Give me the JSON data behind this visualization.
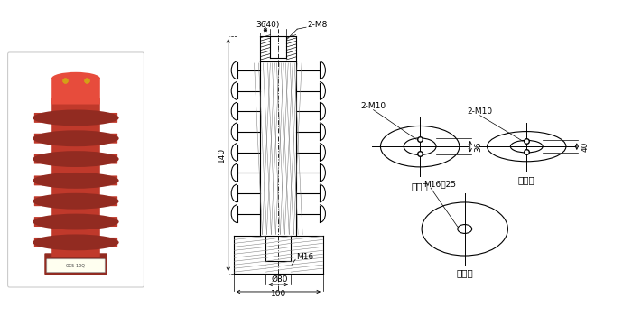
{
  "bg_color": "#ffffff",
  "line_color": "#000000",
  "photo_color": "#c0392b",
  "photo_dark": "#922b21",
  "photo_light": "#e74c3c",
  "fig_width": 7.0,
  "fig_height": 3.72,
  "labels": {
    "top_dim1": "36",
    "top_dim2": "(40)",
    "top_bolt": "2-M8",
    "height_dim": "140",
    "bottom_bolt": "M16",
    "bottom_phi": "Ø80",
    "bottom_width": "100",
    "flange1_bolt": "2-M10",
    "flange1_dim": "36",
    "flange2_bolt": "2-M10",
    "flange2_dim": "40",
    "flange3_bolt": "M16淲25",
    "flange1_label": "上法兰",
    "flange2_label": "上法兰",
    "flange3_label": "下法兰"
  }
}
